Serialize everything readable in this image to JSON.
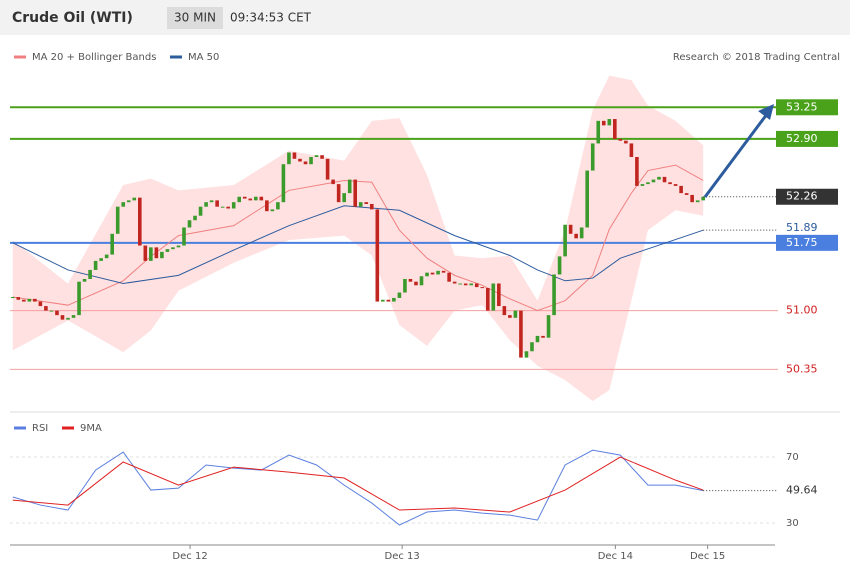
{
  "header": {
    "title": "Crude Oil (WTI)",
    "timeframe": "30 MIN",
    "time": "09:34:53 CET",
    "credit": "Research © 2018 Trading Central"
  },
  "chart_data": [
    {
      "type": "candlestick",
      "x": [
        0,
        1,
        2,
        3,
        4,
        5,
        6,
        7,
        8,
        9,
        10,
        11,
        12,
        13,
        14,
        15,
        16,
        17,
        18,
        19,
        20,
        21,
        22,
        23,
        24,
        25,
        26,
        27,
        28,
        29,
        30,
        31,
        32,
        33,
        34,
        35,
        36,
        37,
        38,
        39,
        40,
        41,
        42,
        43,
        44,
        45,
        46,
        47,
        48,
        49,
        50,
        51,
        52,
        53,
        54,
        55,
        56,
        57,
        58,
        59,
        60,
        61,
        62,
        63,
        64,
        65,
        66,
        67,
        68,
        69,
        70,
        71,
        72,
        73,
        74,
        75,
        76,
        77,
        78,
        79,
        80,
        81,
        82,
        83,
        84,
        85,
        86,
        87,
        88,
        89,
        90,
        91,
        92,
        93,
        94,
        95,
        96,
        97,
        98,
        99,
        100,
        101,
        102,
        103,
        104,
        105,
        106,
        107,
        108,
        109,
        110,
        111,
        112,
        113,
        114,
        115,
        116,
        117,
        118,
        119,
        120,
        121,
        122,
        123,
        124,
        125
      ],
      "close": [
        51.15,
        51.12,
        51.1,
        51.13,
        51.1,
        51.05,
        51.0,
        51.0,
        50.95,
        50.9,
        50.92,
        50.95,
        51.32,
        51.35,
        51.45,
        51.55,
        51.58,
        51.62,
        51.85,
        52.15,
        52.2,
        52.22,
        52.25,
        51.72,
        51.55,
        51.7,
        51.58,
        51.65,
        51.68,
        51.7,
        51.72,
        51.92,
        52.0,
        52.05,
        52.15,
        52.2,
        52.22,
        52.15,
        52.15,
        52.13,
        52.2,
        52.26,
        52.24,
        52.22,
        52.26,
        52.22,
        52.1,
        52.12,
        52.2,
        52.62,
        52.75,
        52.68,
        52.65,
        52.62,
        52.7,
        52.72,
        52.68,
        52.45,
        52.4,
        52.2,
        52.3,
        52.45,
        52.15,
        52.2,
        52.18,
        52.12,
        51.1,
        51.12,
        51.1,
        51.14,
        51.2,
        51.35,
        51.32,
        51.28,
        51.38,
        51.42,
        51.4,
        51.44,
        51.42,
        51.32,
        51.3,
        51.3,
        51.28,
        51.3,
        51.26,
        51.25,
        51.0,
        51.3,
        51.05,
        50.95,
        50.92,
        51.0,
        50.48,
        50.55,
        50.65,
        50.72,
        50.7,
        50.95,
        51.4,
        51.6,
        51.95,
        51.85,
        51.8,
        51.92,
        52.55,
        52.85,
        53.1,
        53.05,
        53.12,
        52.9,
        52.88,
        52.85,
        52.7,
        52.38,
        52.4,
        52.42,
        52.45,
        52.48,
        52.42,
        52.4,
        52.38,
        52.3,
        52.28,
        52.2,
        52.22,
        52.26
      ],
      "up_color": "#3a9a2b",
      "down_color": "#c0261f",
      "current_price": 52.26,
      "lines": [
        {
          "name": "MA 20 + Bollinger Bands",
          "color": "#f08080",
          "band_color": "#ffd9d9",
          "x": [
            0,
            10,
            20,
            25,
            30,
            40,
            50,
            60,
            65,
            70,
            75,
            80,
            85,
            90,
            95,
            100,
            105,
            108,
            112,
            115,
            120,
            125
          ],
          "values": [
            51.15,
            51.06,
            51.33,
            51.6,
            51.83,
            51.94,
            52.33,
            52.44,
            52.42,
            51.89,
            51.58,
            51.39,
            51.28,
            51.13,
            51.0,
            51.11,
            51.39,
            51.9,
            52.3,
            52.55,
            52.61,
            52.44
          ],
          "upper": [
            51.78,
            51.3,
            52.39,
            52.46,
            52.33,
            52.39,
            52.77,
            52.66,
            53.1,
            53.13,
            52.5,
            51.61,
            51.58,
            51.61,
            51.11,
            51.89,
            53.22,
            53.6,
            53.55,
            53.27,
            53.1,
            52.83
          ],
          "lower": [
            50.56,
            50.89,
            50.54,
            50.78,
            51.22,
            51.53,
            51.78,
            51.83,
            51.61,
            50.84,
            50.61,
            51.0,
            51.06,
            50.67,
            50.39,
            50.23,
            50.0,
            50.12,
            51.11,
            51.89,
            52.11,
            52.05
          ]
        },
        {
          "name": "MA 50",
          "color": "#2d5c9e",
          "x": [
            0,
            10,
            20,
            30,
            40,
            50,
            60,
            70,
            80,
            90,
            95,
            100,
            105,
            110,
            125
          ],
          "values": [
            51.75,
            51.45,
            51.3,
            51.39,
            51.67,
            51.94,
            52.16,
            52.11,
            51.83,
            51.61,
            51.45,
            51.33,
            51.36,
            51.58,
            51.89
          ]
        }
      ],
      "levels": [
        {
          "value": 53.25,
          "label": "53.25",
          "color": "#4aa11a",
          "label_box": true
        },
        {
          "value": 52.9,
          "label": "52.90",
          "color": "#4aa11a",
          "label_box": true
        },
        {
          "value": 51.75,
          "label": "51.75",
          "color": "#4a7fe0",
          "label_box": true
        },
        {
          "value": 51,
          "label": "51.00",
          "color": "#f4a0a0",
          "label_box": false
        },
        {
          "value": 50.35,
          "label": "50.35",
          "color": "#f4a0a0",
          "label_box": false
        }
      ],
      "xlim": [
        -0.5,
        138
      ],
      "ylim": [
        49.9,
        54.05
      ]
    },
    {
      "type": "line",
      "series": [
        {
          "name": "RSI",
          "color": "#5b7fe0",
          "x": [
            0,
            5,
            10,
            15,
            20,
            25,
            30,
            35,
            40,
            45,
            50,
            55,
            60,
            65,
            70,
            75,
            80,
            85,
            90,
            95,
            100,
            105,
            110,
            115,
            120,
            125
          ],
          "values": [
            45.8,
            40.9,
            37.9,
            62.1,
            73,
            50,
            51.2,
            65.2,
            63.3,
            62.1,
            71.2,
            65.2,
            53,
            42.1,
            28.8,
            36.7,
            37.9,
            36,
            34.8,
            31.8,
            65.2,
            74.2,
            71.2,
            53,
            53,
            49.64
          ]
        },
        {
          "name": "9MA",
          "color": "#e02020",
          "x": [
            0,
            10,
            20,
            30,
            40,
            50,
            60,
            70,
            80,
            90,
            100,
            110,
            120,
            125
          ],
          "values": [
            43.9,
            40.9,
            67,
            53,
            63.9,
            60.9,
            57.3,
            37.9,
            39.1,
            36.7,
            50,
            70,
            56,
            50
          ]
        }
      ],
      "xlim": [
        -0.5,
        138
      ],
      "ylim": [
        16.7,
        86.4
      ],
      "yticks": [
        70,
        30
      ],
      "xticks": [
        {
          "value": 32.1,
          "label": "Dec 12"
        },
        {
          "value": 70.5,
          "label": "Dec 13"
        },
        {
          "value": 109.1,
          "label": "Dec 14"
        },
        {
          "value": 125.8,
          "label": "Dec 15"
        }
      ]
    }
  ]
}
